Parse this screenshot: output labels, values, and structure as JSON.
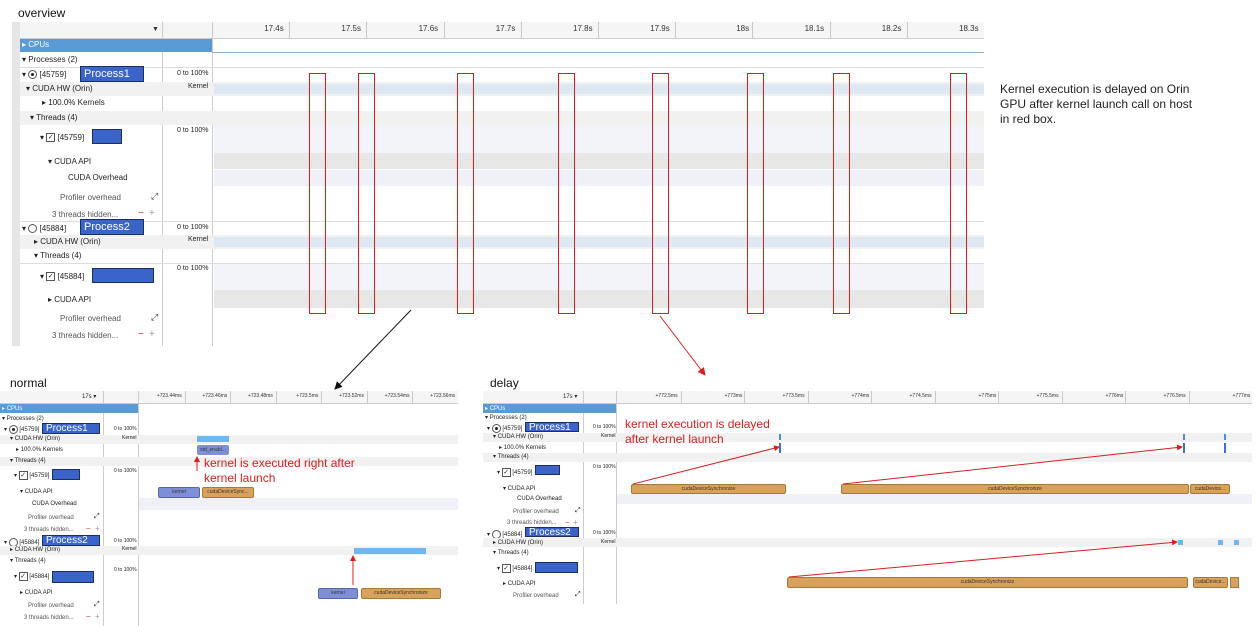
{
  "captions": {
    "overview": "overview",
    "normal": "normal",
    "delay": "delay"
  },
  "note": {
    "line1": "Kernel execution is delayed on Orin",
    "line2": "GPU after kernel launch call on host",
    "line3": "in red box."
  },
  "overview": {
    "ticks": [
      "17.4s",
      "17.5s",
      "17.6s",
      "17.7s",
      "17.8s",
      "17.9s",
      "18s",
      "18.1s",
      "18.2s",
      "18.3s"
    ],
    "rows": {
      "cpus": "CPUs",
      "processes": "Processes (2)",
      "p1_id": "[45759]",
      "p1_tag": "Process1",
      "p1_range": "0 to 100%",
      "cuda_hw": "CUDA HW (Orin)",
      "kernel": "Kernel",
      "kernels": "100.0% Kernels",
      "threads": "Threads (4)",
      "t1_id": "[45759]",
      "t1_range": "0 to 100%",
      "cuda_api": "CUDA API",
      "cuda_overhead": "CUDA Overhead",
      "profiler_overhead": "Profiler overhead",
      "threads_hidden": "3 threads hidden...",
      "p2_id": "[45884]",
      "p2_tag": "Process2",
      "p2_range": "0 to 100%",
      "cuda_hw2": "CUDA HW (Orin)",
      "kernel2": "Kernel",
      "threads2": "Threads (4)",
      "t2_id": "[45884]",
      "t2_range": "0 to 100%",
      "cuda_api2": "CUDA API",
      "profiler_overhead2": "Profiler overhead",
      "threads_hidden2": "3 threads hidden..."
    }
  },
  "normal": {
    "time_sel": "17s",
    "ticks": [
      "+723.44ms",
      "+723.46ms",
      "+723.48ms",
      "+723.5ms",
      "+723.52ms",
      "+723.54ms",
      "+723.56ms"
    ],
    "rows": {
      "cpus": "CPUs",
      "processes": "Processes (2)",
      "p1_id": "[45759]",
      "p1_tag": "Process1",
      "range": "0 to 100%",
      "cuda_hw": "CUDA HW (Orin)",
      "kernel": "Kernel",
      "kernels": "100.0% Kernels",
      "threads": "Threads (4)",
      "t1_id": "[45759]",
      "cuda_api": "CUDA API",
      "cuda_overhead": "CUDA Overhead",
      "profiler_overhead": "Profiler overhead",
      "threads_hidden": "3 threads hidden...",
      "p2_id": "[45884]",
      "p2_tag": "Process2",
      "t2_id": "[45884]",
      "threads2": "Threads (4)",
      "cuda_api2": "CUDA API",
      "profiler_overhead2": "Profiler overhead",
      "threads_hidden2": "3 threads hidden..."
    },
    "pills": {
      "std_enabl": "std_enabl...",
      "kernel1": "kernel",
      "sync1": "cudaDeviceSync...",
      "kernel2": "kernel",
      "sync2": "cudaDeviceSynchronize"
    },
    "annotation_line1": "kernel is executed right after",
    "annotation_line2": "kernel launch"
  },
  "delay": {
    "time_sel": "17s",
    "ticks": [
      "+772.5ms",
      "+773ms",
      "+773.5ms",
      "+774ms",
      "+774.5ms",
      "+775ms",
      "+775.5ms",
      "+776ms",
      "+776.5ms",
      "+777ms"
    ],
    "rows": {
      "cpus": "CPUs",
      "processes": "Processes (2)",
      "p1_id": "[45759]",
      "p1_tag": "Process1",
      "range": "0 to 100%",
      "cuda_hw": "CUDA HW (Orin)",
      "kernel": "Kernel",
      "kernels": "100.0% Kernels",
      "threads": "Threads (4)",
      "t1_id": "[45759]",
      "cuda_api": "CUDA API",
      "cuda_overhead": "CUDA Overhead",
      "profiler_overhead": "Profiler overhead",
      "threads_hidden": "3 threads hidden...",
      "p2_id": "[45884]",
      "p2_tag": "Process2",
      "t2_id": "[45884]",
      "threads2": "Threads (4)",
      "cuda_api2": "CUDA API",
      "profiler_overhead2": "Profiler overhead"
    },
    "pills": {
      "sync_a": "cudaDeviceSynchronize",
      "sync_b": "cudaDeviceSynchronize",
      "sync_c": "cudaDevice...",
      "sync_d": "cudaDeviceSynchronize",
      "sync_e": "cudaDevice..."
    },
    "annotation_line1": "kernel execution is delayed",
    "annotation_line2": "after kernel launch"
  },
  "colors": {
    "header_blue": "#5b9bd5",
    "kernel_bar": "#6fb7f0",
    "api_pill_blue": "#7e8fd8",
    "api_pill_orange": "#d9a25c",
    "annotation_red": "#d61f1f"
  }
}
